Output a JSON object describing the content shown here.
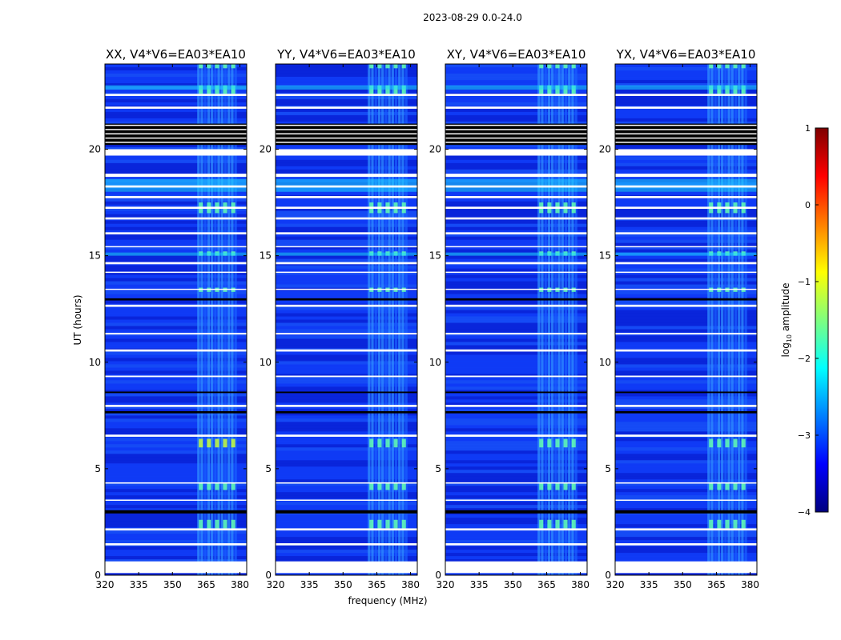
{
  "figure": {
    "suptitle": "2023-08-29 0.0-24.0",
    "xlabel": "frequency (MHz)",
    "ylabel": "UT (hours)"
  },
  "chart_data": {
    "type": "heatmap",
    "x_ticks": [
      320,
      335,
      350,
      365,
      380
    ],
    "y_ticks": [
      0,
      5,
      10,
      15,
      20
    ],
    "xlim": [
      320,
      383
    ],
    "ylim": [
      0,
      24
    ],
    "panels": [
      {
        "title": "XX, V4*V6=EA03*EA10",
        "polarization": "XX"
      },
      {
        "title": "YY, V4*V6=EA03*EA10",
        "polarization": "YY"
      },
      {
        "title": "XY, V4*V6=EA03*EA10",
        "polarization": "XY"
      },
      {
        "title": "YX, V4*V6=EA03*EA10",
        "polarization": "YX"
      }
    ],
    "rfi_band_mhz": [
      361,
      379
    ],
    "colorbar": {
      "label": "log10 amplitude",
      "label_main": "log",
      "label_sub": "10",
      "label_rest": " amplitude",
      "range": [
        -4,
        1
      ],
      "ticks": [
        "1",
        "0",
        "−1",
        "−2",
        "−3",
        "−4"
      ],
      "colormap": "jet",
      "colors": [
        "#00007f",
        "#0000ff",
        "#007fff",
        "#00ffff",
        "#7fff7f",
        "#ffff00",
        "#ff7f00",
        "#ff0000",
        "#7f0000"
      ]
    },
    "blank_rows_ut": [
      [
        0.1,
        0.65
      ],
      [
        1.4,
        1.5
      ],
      [
        2.1,
        2.2
      ],
      [
        3.5,
        3.55
      ],
      [
        4.3,
        4.36
      ],
      [
        6.5,
        6.6
      ],
      [
        7.9,
        8.0
      ],
      [
        9.3,
        9.37
      ],
      [
        10.5,
        10.6
      ],
      [
        11.3,
        11.38
      ],
      [
        12.6,
        12.7
      ],
      [
        13.4,
        13.45
      ],
      [
        14.2,
        14.25
      ],
      [
        14.6,
        14.7
      ],
      [
        15.4,
        15.45
      ],
      [
        16.0,
        16.1
      ],
      [
        16.7,
        16.8
      ],
      [
        17.2,
        17.3
      ],
      [
        17.7,
        17.8
      ],
      [
        18.2,
        18.3
      ],
      [
        18.7,
        18.85
      ],
      [
        19.7,
        20.0
      ],
      [
        21.9,
        22.0
      ],
      [
        22.5,
        22.6
      ]
    ],
    "black_rows_ut": [
      [
        2.9,
        3.05
      ],
      [
        7.6,
        7.7
      ],
      [
        8.55,
        8.62
      ],
      [
        12.9,
        13.0
      ],
      [
        20.2,
        21.2
      ]
    ]
  }
}
